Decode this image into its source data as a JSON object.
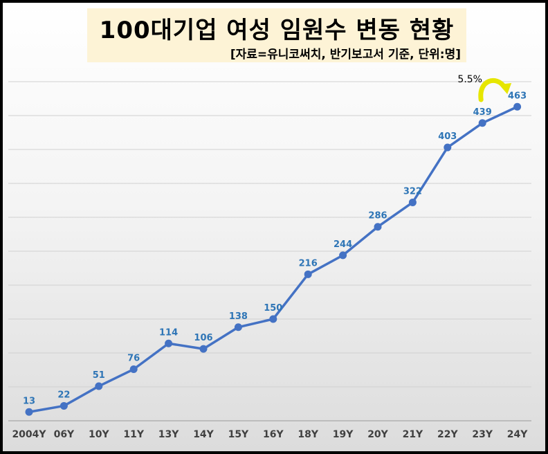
{
  "title": "100대기업 여성 임원수 변동 현황",
  "subtitle": "[자료=유니코써치, 반기보고서 기준, 단위:명]",
  "annotation": {
    "text": "5.5%",
    "arrow_color": "#e6e600"
  },
  "colors": {
    "line": "#4472c4",
    "label": "#2e75b6",
    "grid": "#d0d0d0"
  },
  "chart_data": {
    "type": "line",
    "categories": [
      "2004Y",
      "06Y",
      "10Y",
      "11Y",
      "13Y",
      "14Y",
      "15Y",
      "16Y",
      "18Y",
      "19Y",
      "20Y",
      "21Y",
      "22Y",
      "23Y",
      "24Y"
    ],
    "series": [
      {
        "values": [
          13,
          22,
          51,
          76,
          114,
          106,
          138,
          150,
          216,
          244,
          286,
          322,
          403,
          439,
          463
        ]
      }
    ],
    "ylim": [
      0,
      500
    ],
    "grid": true,
    "legend": "none",
    "data_labels": true
  }
}
